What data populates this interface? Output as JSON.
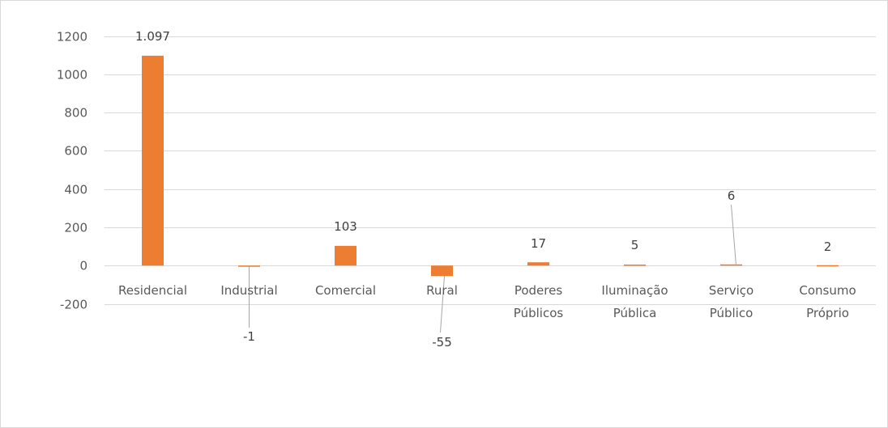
{
  "chart_data": {
    "type": "bar",
    "categories": [
      [
        "Residencial"
      ],
      [
        "Industrial"
      ],
      [
        "Comercial"
      ],
      [
        "Rural"
      ],
      [
        "Poderes",
        "Públicos"
      ],
      [
        "Iluminação",
        "Pública"
      ],
      [
        "Serviço",
        "Público"
      ],
      [
        "Consumo",
        "Próprio"
      ]
    ],
    "values": [
      1097,
      -1,
      103,
      -55,
      17,
      5,
      6,
      2
    ],
    "data_labels": [
      "1.097",
      "-1",
      "103",
      "-55",
      "17",
      "5",
      "6",
      "2"
    ],
    "ylim": [
      -200,
      1200
    ],
    "yticks": [
      1200,
      1000,
      800,
      600,
      400,
      200,
      0,
      -200
    ],
    "grid": true,
    "bar_color": "#ED7D31",
    "gridline_color": "#d9d9d9",
    "leader_color": "#a6a6a6"
  }
}
